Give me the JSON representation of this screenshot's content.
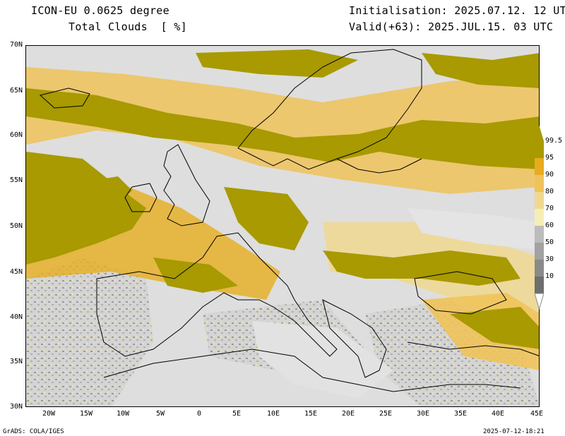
{
  "header": {
    "model": "ICON-EU 0.0625 degree",
    "variable": "Total Clouds  [ %]",
    "init": "Initialisation: 2025.07.12. 12 UTC",
    "valid": "Valid(+63): 2025.JUL.15. 03 UTC"
  },
  "axes": {
    "lat_labels": [
      "70N",
      "65N",
      "60N",
      "55N",
      "50N",
      "45N",
      "40N",
      "35N",
      "30N"
    ],
    "lon_labels": [
      "20W",
      "15W",
      "10W",
      "5W",
      "0",
      "5E",
      "10E",
      "15E",
      "20E",
      "25E",
      "30E",
      "35E",
      "40E",
      "45E"
    ]
  },
  "colorbar": {
    "labels": [
      "99.5",
      "95",
      "90",
      "80",
      "70",
      "60",
      "50",
      "30",
      "10"
    ],
    "colors": [
      "#a89a00",
      "#e6ac1e",
      "#efc35a",
      "#f0d890",
      "#f6eeb4",
      "#bcbcbc",
      "#a2a2a2",
      "#8a8a8a",
      "#6e6e6e"
    ]
  },
  "footer": {
    "left": "GrADS: COLA/IGES",
    "right": "2025-07-12-18:21"
  }
}
